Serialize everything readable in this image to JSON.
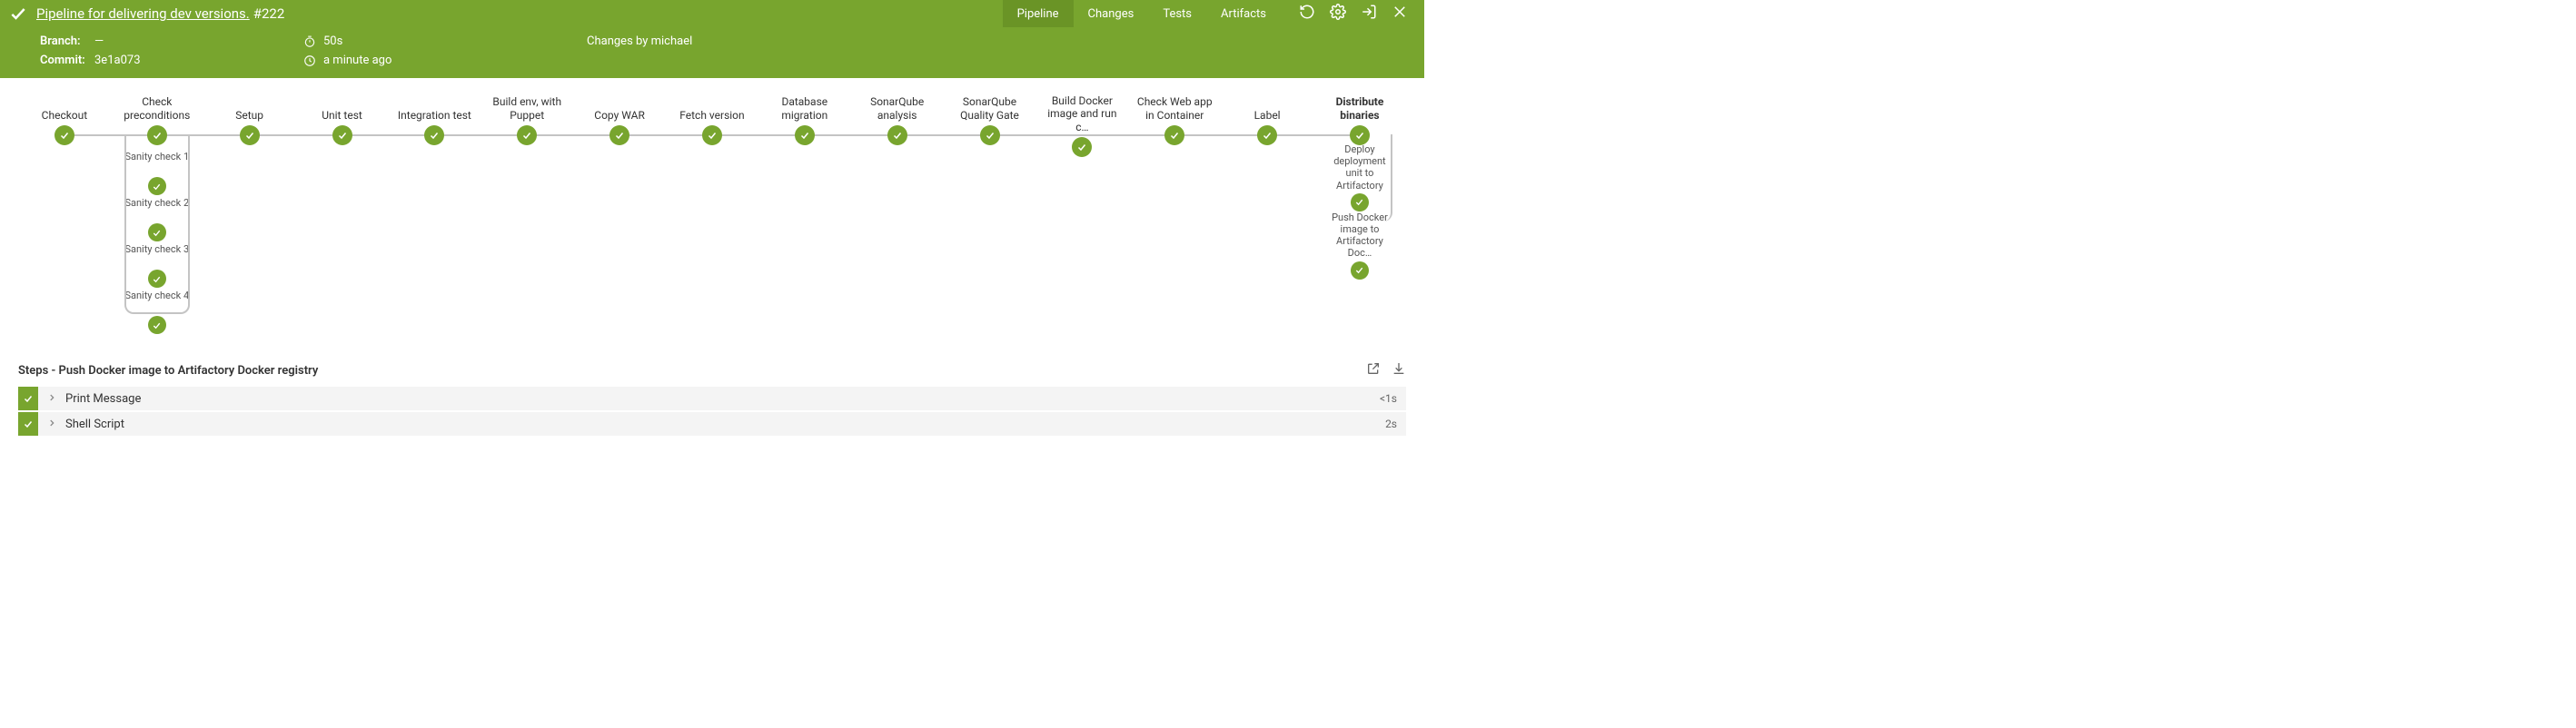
{
  "colors": {
    "header_bg": "#78a52e",
    "header_active_bg": "#6a9426",
    "node_bg": "#78a52e",
    "line": "#c4c4c4",
    "step_body_bg": "#f4f4f4"
  },
  "header": {
    "title": "Pipeline for delivering dev versions.",
    "build_number": "#222",
    "tabs": [
      {
        "label": "Pipeline",
        "active": true
      },
      {
        "label": "Changes",
        "active": false
      },
      {
        "label": "Tests",
        "active": false
      },
      {
        "label": "Artifacts",
        "active": false
      }
    ],
    "meta": {
      "branch_label": "Branch:",
      "branch_value": "—",
      "commit_label": "Commit:",
      "commit_value": "3e1a073",
      "duration": "50s",
      "timestamp": "a minute ago",
      "changes_by": "Changes by michael"
    }
  },
  "pipeline": {
    "stages": [
      {
        "label": "Checkout"
      },
      {
        "label": "Check preconditions",
        "subs": [
          "Sanity check 1",
          "Sanity check 2",
          "Sanity check 3",
          "Sanity check 4"
        ]
      },
      {
        "label": "Setup"
      },
      {
        "label": "Unit test"
      },
      {
        "label": "Integration test"
      },
      {
        "label": "Build env, with Puppet"
      },
      {
        "label": "Copy WAR"
      },
      {
        "label": "Fetch version"
      },
      {
        "label": "Database migration"
      },
      {
        "label": "SonarQube analysis"
      },
      {
        "label": "SonarQube Quality Gate"
      },
      {
        "label": "Build Docker image and run c…"
      },
      {
        "label": "Check Web app in Container"
      },
      {
        "label": "Label"
      },
      {
        "label": "Distribute binaries",
        "bold": true,
        "right_subs": [
          {
            "label": "Deploy deployment unit to Artifactory"
          },
          {
            "label": "Push Docker image to Artifactory Doc…"
          }
        ]
      }
    ]
  },
  "steps": {
    "title": "Steps - Push Docker image to Artifactory Docker registry",
    "rows": [
      {
        "name": "Print Message",
        "time": "<1s"
      },
      {
        "name": "Shell Script",
        "time": "2s"
      }
    ]
  }
}
